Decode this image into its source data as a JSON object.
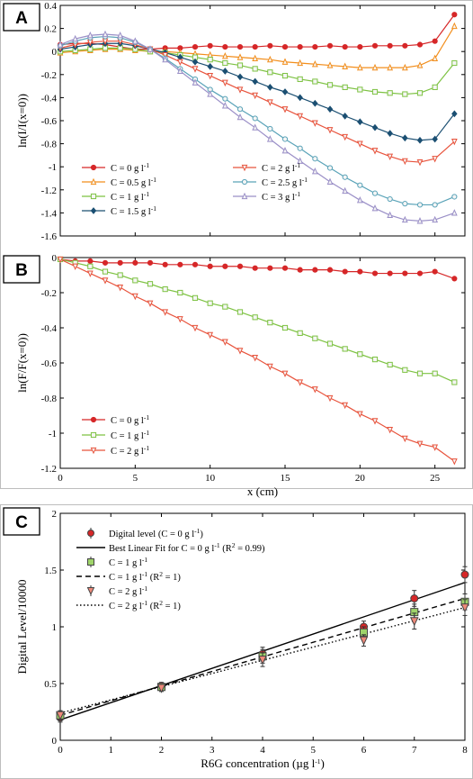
{
  "chart_data": [
    {
      "panel": "A",
      "type": "line",
      "xlabel": "",
      "ylabel": "ln(I/I(x=0))",
      "xlim": [
        0,
        27
      ],
      "ylim": [
        -1.6,
        0.4
      ],
      "yticks": [
        "0.4",
        "0.2",
        "0",
        "-0.2",
        "-0.4",
        "-0.6",
        "-0.8",
        "-1",
        "-1.2",
        "-1.4",
        "-1.6"
      ],
      "legend_position": "bottom-left",
      "series": [
        {
          "name": "C = 0 g l",
          "sup": "-1",
          "color": "#d62728",
          "marker": "circle",
          "x": [
            0,
            1,
            2,
            3,
            4,
            5,
            6,
            7,
            8,
            9,
            10,
            11,
            12,
            13,
            14,
            15,
            16,
            17,
            18,
            19,
            20,
            21,
            22,
            23,
            24,
            25,
            26.3
          ],
          "y": [
            0.06,
            0.07,
            0.07,
            0.06,
            0.04,
            0.02,
            0.02,
            0.03,
            0.03,
            0.04,
            0.05,
            0.04,
            0.04,
            0.04,
            0.05,
            0.04,
            0.04,
            0.04,
            0.05,
            0.04,
            0.04,
            0.05,
            0.05,
            0.05,
            0.06,
            0.09,
            0.32
          ]
        },
        {
          "name": "C = 0.5 g l",
          "sup": "-1",
          "color": "#f28e1c",
          "marker": "triangle-up",
          "x": [
            0,
            1,
            2,
            3,
            4,
            5,
            6,
            7,
            8,
            9,
            10,
            11,
            12,
            13,
            14,
            15,
            16,
            17,
            18,
            19,
            20,
            21,
            22,
            23,
            24,
            25,
            26.3
          ],
          "y": [
            -0.01,
            0.0,
            0.01,
            0.02,
            0.02,
            0.01,
            0.0,
            0.0,
            -0.01,
            -0.02,
            -0.03,
            -0.04,
            -0.05,
            -0.06,
            -0.07,
            -0.09,
            -0.1,
            -0.11,
            -0.12,
            -0.13,
            -0.14,
            -0.14,
            -0.14,
            -0.14,
            -0.12,
            -0.06,
            0.22
          ]
        },
        {
          "name": "C = 1 g l",
          "sup": "-1",
          "color": "#7dc242",
          "marker": "square",
          "x": [
            0,
            1,
            2,
            3,
            4,
            5,
            6,
            7,
            8,
            9,
            10,
            11,
            12,
            13,
            14,
            15,
            16,
            17,
            18,
            19,
            20,
            21,
            22,
            23,
            24,
            25,
            26.3
          ],
          "y": [
            0.0,
            0.01,
            0.02,
            0.03,
            0.03,
            0.02,
            0.0,
            -0.01,
            -0.03,
            -0.05,
            -0.07,
            -0.1,
            -0.12,
            -0.15,
            -0.18,
            -0.21,
            -0.24,
            -0.26,
            -0.29,
            -0.31,
            -0.33,
            -0.35,
            -0.36,
            -0.37,
            -0.36,
            -0.31,
            -0.1
          ]
        },
        {
          "name": "C = 1.5 g l",
          "sup": "-1",
          "color": "#1b4f72",
          "marker": "diamond",
          "x": [
            0,
            1,
            2,
            3,
            4,
            5,
            6,
            7,
            8,
            9,
            10,
            11,
            12,
            13,
            14,
            15,
            16,
            17,
            18,
            19,
            20,
            21,
            22,
            23,
            24,
            25,
            26.3
          ],
          "y": [
            0.02,
            0.04,
            0.06,
            0.07,
            0.07,
            0.05,
            0.02,
            -0.01,
            -0.05,
            -0.09,
            -0.13,
            -0.17,
            -0.22,
            -0.26,
            -0.31,
            -0.35,
            -0.4,
            -0.45,
            -0.5,
            -0.56,
            -0.61,
            -0.66,
            -0.71,
            -0.75,
            -0.77,
            -0.76,
            -0.54
          ]
        },
        {
          "name": "C = 2 g l",
          "sup": "-1",
          "color": "#e8533c",
          "marker": "triangle-down",
          "x": [
            0,
            1,
            2,
            3,
            4,
            5,
            6,
            7,
            8,
            9,
            10,
            11,
            12,
            13,
            14,
            15,
            16,
            17,
            18,
            19,
            20,
            21,
            22,
            23,
            24,
            25,
            26.3
          ],
          "y": [
            0.03,
            0.06,
            0.08,
            0.09,
            0.09,
            0.06,
            0.02,
            -0.03,
            -0.09,
            -0.15,
            -0.21,
            -0.27,
            -0.33,
            -0.38,
            -0.44,
            -0.5,
            -0.56,
            -0.62,
            -0.68,
            -0.74,
            -0.8,
            -0.86,
            -0.91,
            -0.95,
            -0.96,
            -0.93,
            -0.78
          ]
        },
        {
          "name": "C = 2.5 g l",
          "sup": "-1",
          "color": "#5aa3b8",
          "marker": "circle",
          "x": [
            0,
            1,
            2,
            3,
            4,
            5,
            6,
            7,
            8,
            9,
            10,
            11,
            12,
            13,
            14,
            15,
            16,
            17,
            18,
            19,
            20,
            21,
            22,
            23,
            24,
            25,
            26.3
          ],
          "y": [
            0.05,
            0.09,
            0.12,
            0.13,
            0.12,
            0.08,
            0.02,
            -0.06,
            -0.15,
            -0.24,
            -0.33,
            -0.41,
            -0.5,
            -0.58,
            -0.67,
            -0.76,
            -0.84,
            -0.93,
            -1.01,
            -1.09,
            -1.16,
            -1.23,
            -1.28,
            -1.32,
            -1.33,
            -1.33,
            -1.26
          ]
        },
        {
          "name": "C = 3 g l",
          "sup": "-1",
          "color": "#9a8fc7",
          "marker": "triangle-up",
          "x": [
            0,
            1,
            2,
            3,
            4,
            5,
            6,
            7,
            8,
            9,
            10,
            11,
            12,
            13,
            14,
            15,
            16,
            17,
            18,
            19,
            20,
            21,
            22,
            23,
            24,
            25,
            26.3
          ],
          "y": [
            0.06,
            0.11,
            0.14,
            0.15,
            0.14,
            0.09,
            0.02,
            -0.07,
            -0.17,
            -0.27,
            -0.37,
            -0.47,
            -0.57,
            -0.66,
            -0.76,
            -0.86,
            -0.95,
            -1.04,
            -1.13,
            -1.21,
            -1.29,
            -1.36,
            -1.42,
            -1.46,
            -1.47,
            -1.46,
            -1.4
          ]
        }
      ]
    },
    {
      "panel": "B",
      "type": "line",
      "xlabel": "x (cm)",
      "ylabel": "ln(F/F(x=0))",
      "xlim": [
        0,
        27
      ],
      "ylim": [
        -1.2,
        0
      ],
      "xticks": [
        "0",
        "5",
        "10",
        "15",
        "20",
        "25"
      ],
      "yticks": [
        "0",
        "-0.2",
        "-0.4",
        "-0.6",
        "-0.8",
        "-1",
        "-1.2"
      ],
      "legend_position": "bottom-left",
      "series": [
        {
          "name": "C = 0 g l",
          "sup": "-1",
          "color": "#d62728",
          "marker": "circle",
          "x": [
            0,
            1,
            2,
            3,
            4,
            5,
            6,
            7,
            8,
            9,
            10,
            11,
            12,
            13,
            14,
            15,
            16,
            17,
            18,
            19,
            20,
            21,
            22,
            23,
            24,
            25,
            26.3
          ],
          "y": [
            -0.01,
            -0.02,
            -0.02,
            -0.03,
            -0.03,
            -0.03,
            -0.03,
            -0.04,
            -0.04,
            -0.04,
            -0.05,
            -0.05,
            -0.05,
            -0.06,
            -0.06,
            -0.06,
            -0.07,
            -0.07,
            -0.07,
            -0.08,
            -0.08,
            -0.09,
            -0.09,
            -0.09,
            -0.09,
            -0.08,
            -0.12
          ]
        },
        {
          "name": "C = 1 g l",
          "sup": "-1",
          "color": "#7dc242",
          "marker": "square",
          "x": [
            0,
            1,
            2,
            3,
            4,
            5,
            6,
            7,
            8,
            9,
            10,
            11,
            12,
            13,
            14,
            15,
            16,
            17,
            18,
            19,
            20,
            21,
            22,
            23,
            24,
            25,
            26.3
          ],
          "y": [
            -0.01,
            -0.03,
            -0.05,
            -0.08,
            -0.1,
            -0.13,
            -0.15,
            -0.18,
            -0.2,
            -0.23,
            -0.26,
            -0.28,
            -0.31,
            -0.34,
            -0.37,
            -0.4,
            -0.43,
            -0.46,
            -0.49,
            -0.52,
            -0.55,
            -0.58,
            -0.61,
            -0.64,
            -0.66,
            -0.66,
            -0.71
          ]
        },
        {
          "name": "C = 2 g l",
          "sup": "-1",
          "color": "#e8533c",
          "marker": "triangle-down",
          "x": [
            0,
            1,
            2,
            3,
            4,
            5,
            6,
            7,
            8,
            9,
            10,
            11,
            12,
            13,
            14,
            15,
            16,
            17,
            18,
            19,
            20,
            21,
            22,
            23,
            24,
            25,
            26.3
          ],
          "y": [
            -0.01,
            -0.05,
            -0.09,
            -0.13,
            -0.17,
            -0.22,
            -0.26,
            -0.31,
            -0.35,
            -0.4,
            -0.44,
            -0.48,
            -0.53,
            -0.57,
            -0.62,
            -0.66,
            -0.71,
            -0.75,
            -0.8,
            -0.84,
            -0.89,
            -0.93,
            -0.98,
            -1.03,
            -1.06,
            -1.08,
            -1.16
          ]
        }
      ]
    },
    {
      "panel": "C",
      "type": "scatter",
      "xlabel": "R6G concentration (µg l",
      "xlabel_sup": "-1",
      "xlabel_end": ")",
      "ylabel": "Digital Level/10000",
      "xlim": [
        0,
        8
      ],
      "ylim": [
        0,
        2
      ],
      "xticks": [
        "0",
        "1",
        "2",
        "3",
        "4",
        "5",
        "6",
        "7",
        "8"
      ],
      "yticks": [
        "0",
        "0.5",
        "1",
        "1.5",
        "2"
      ],
      "legend_position": "top-left",
      "points": [
        {
          "name": "Digital level (C = 0 g l",
          "sup": "-1",
          "end": ")",
          "color": "#d62728",
          "marker": "circle",
          "x": [
            0,
            2,
            4,
            6,
            7,
            8
          ],
          "y": [
            0.2,
            0.48,
            0.76,
            1.0,
            1.25,
            1.46
          ],
          "err": [
            0.04,
            0.03,
            0.06,
            0.05,
            0.07,
            0.07
          ]
        },
        {
          "name": "C = 1 g l",
          "sup": "-1",
          "end": "",
          "color": "#7dc242",
          "marker": "square",
          "x": [
            0,
            2,
            4,
            6,
            7,
            8
          ],
          "y": [
            0.22,
            0.47,
            0.74,
            0.95,
            1.13,
            1.22
          ],
          "err": [
            0.04,
            0.03,
            0.06,
            0.05,
            0.07,
            0.07
          ]
        },
        {
          "name": "C = 2 g l",
          "sup": "-1",
          "end": "",
          "color": "#e8533c",
          "marker": "triangle-down",
          "x": [
            0,
            2,
            4,
            6,
            7,
            8
          ],
          "y": [
            0.22,
            0.46,
            0.71,
            0.88,
            1.05,
            1.17
          ],
          "err": [
            0.04,
            0.03,
            0.06,
            0.05,
            0.07,
            0.07
          ]
        }
      ],
      "fits": [
        {
          "name": "Best Linear Fit for C = 0 g l",
          "sup": "-1",
          "end": " (R",
          "sup2": "2",
          "end2": " = 0.99)",
          "style": "solid",
          "x": [
            0,
            8
          ],
          "y": [
            0.18,
            1.39
          ]
        },
        {
          "name": "C = 1 g l",
          "sup": "-1",
          "end": " (R",
          "sup2": "2",
          "end2": " = 1)",
          "style": "dashed",
          "x": [
            0,
            8
          ],
          "y": [
            0.22,
            1.25
          ]
        },
        {
          "name": "C = 2 g l",
          "sup": "-1",
          "end": " (R",
          "sup2": "2",
          "end2": " = 1)",
          "style": "dotted",
          "x": [
            0,
            8
          ],
          "y": [
            0.24,
            1.17
          ]
        }
      ]
    }
  ]
}
